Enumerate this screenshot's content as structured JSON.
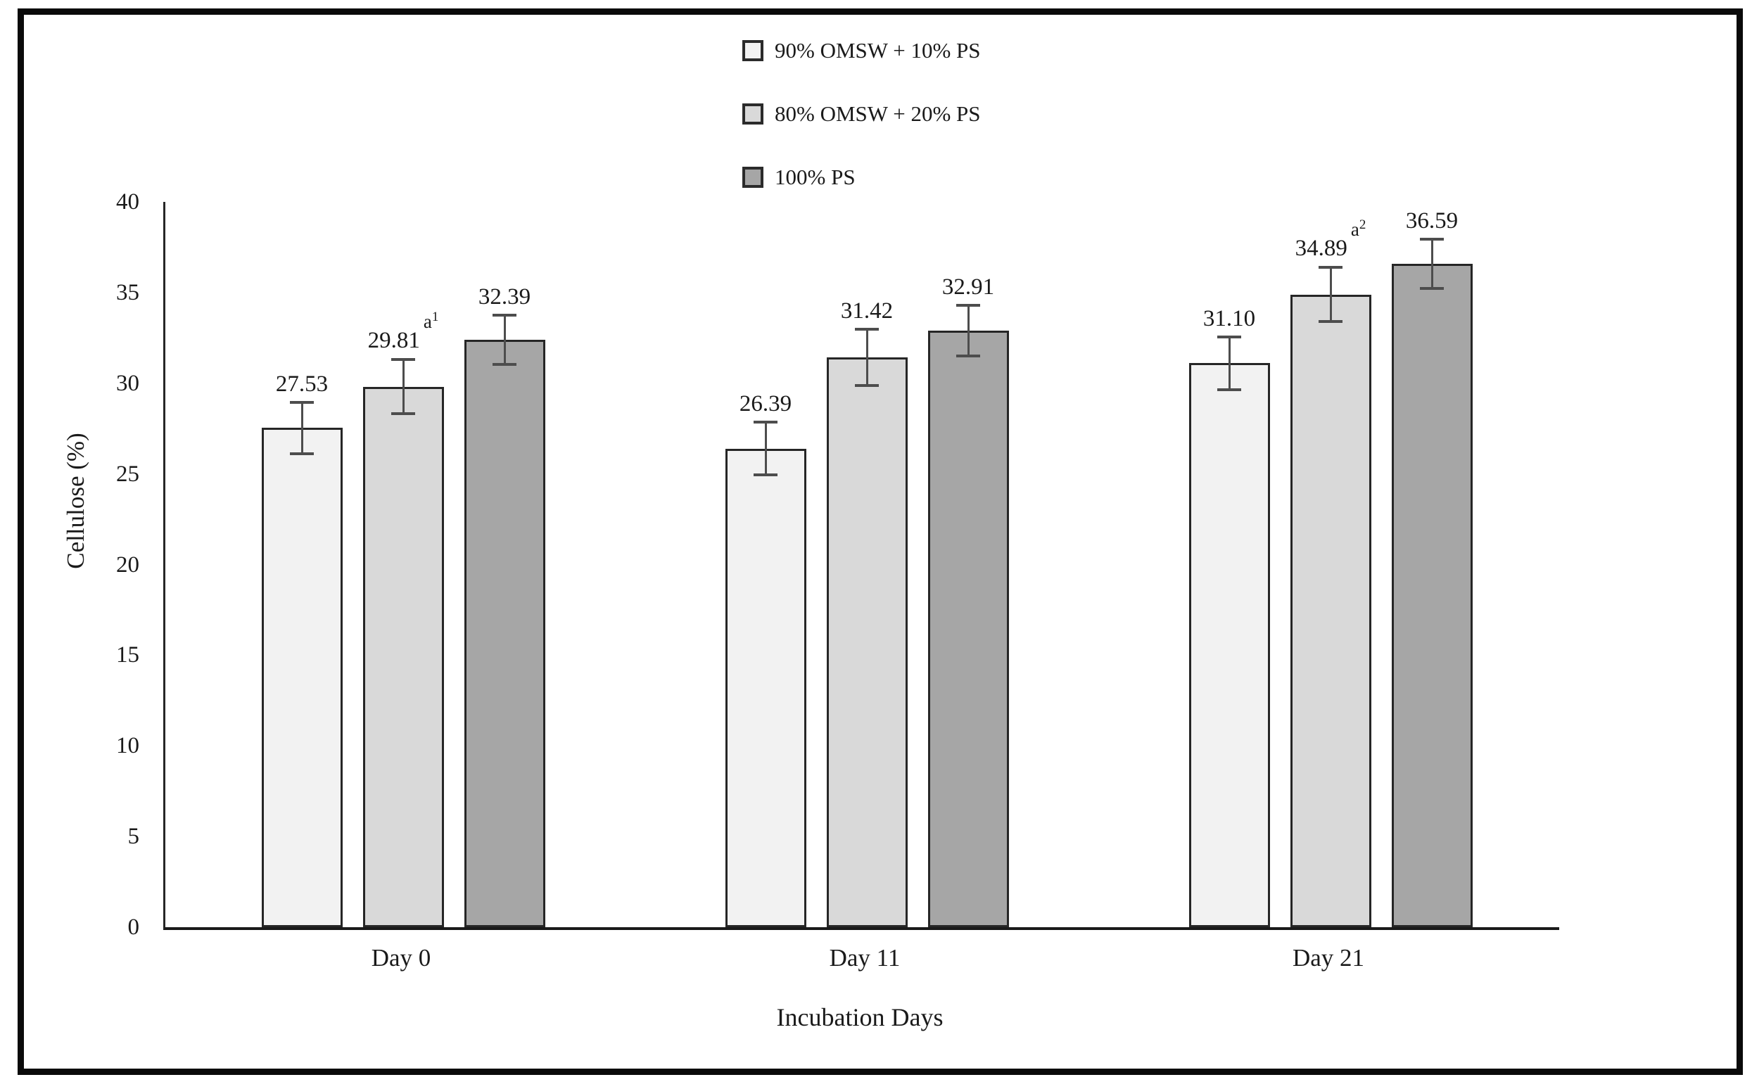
{
  "chart_data": {
    "type": "bar",
    "title": "",
    "xlabel": "Incubation Days",
    "ylabel": "Cellulose (%)",
    "categories": [
      "Day 0",
      "Day 11",
      "Day 21"
    ],
    "series": [
      {
        "name": "90% OMSW + 10% PS",
        "color": "#f2f2f2",
        "values": [
          27.53,
          26.39,
          31.1
        ],
        "labels": [
          "27.53",
          "26.39",
          "31.10"
        ],
        "errors": [
          1.4,
          1.45,
          1.45
        ],
        "annotations": [
          null,
          null,
          null
        ]
      },
      {
        "name": "80% OMSW + 20% PS",
        "color": "#d9d9d9",
        "values": [
          29.81,
          31.42,
          34.89
        ],
        "labels": [
          "29.81",
          "31.42",
          "34.89"
        ],
        "errors": [
          1.5,
          1.55,
          1.5
        ],
        "annotations": [
          {
            "text": "a",
            "sup": "1"
          },
          null,
          {
            "text": "a",
            "sup": "2"
          }
        ]
      },
      {
        "name": "100% PS",
        "color": "#a6a6a6",
        "values": [
          32.39,
          32.91,
          36.59
        ],
        "labels": [
          "32.39",
          "32.91",
          "36.59"
        ],
        "errors": [
          1.35,
          1.4,
          1.35
        ],
        "annotations": [
          null,
          null,
          null
        ]
      }
    ],
    "ylim": [
      0,
      40
    ],
    "yticks": [
      0,
      5,
      10,
      15,
      20,
      25,
      30,
      35,
      40
    ],
    "grid": false,
    "legend_position": "top-center",
    "bar_border_color": "#262626",
    "error_bar_color": "#4d4d4d",
    "axis_color": "#1a1a1a"
  }
}
